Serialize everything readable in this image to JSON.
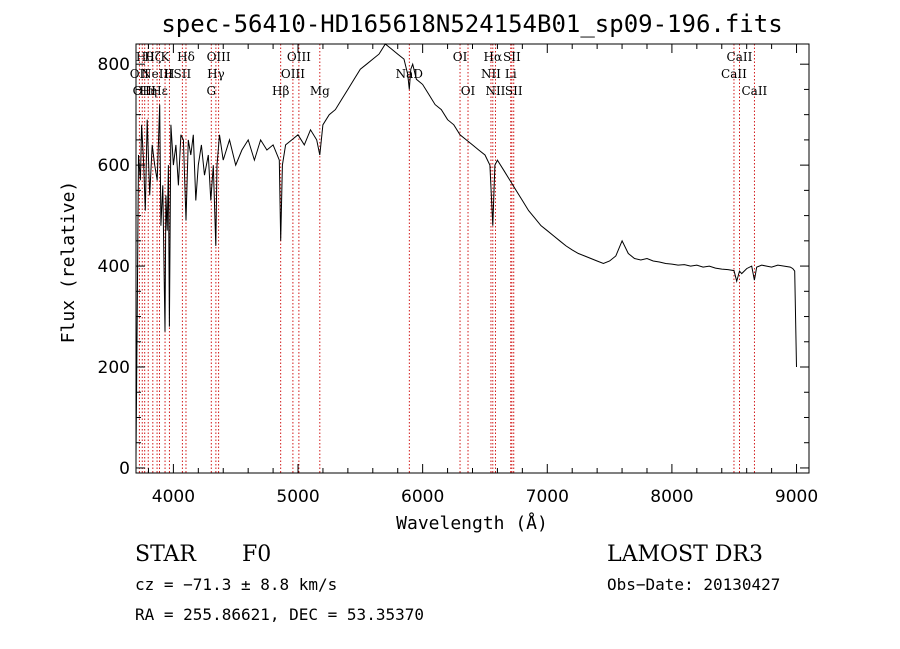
{
  "chart_data": {
    "type": "line",
    "title": "spec-56410-HD165618N524154B01_sp09-196.fits",
    "xlabel": "Wavelength (Å)",
    "ylabel": "Flux (relative)",
    "xlim": [
      3700,
      9100
    ],
    "ylim": [
      -10,
      840
    ],
    "xticks": [
      4000,
      5000,
      6000,
      7000,
      8000,
      9000
    ],
    "yticks": [
      0,
      200,
      400,
      600,
      800
    ],
    "series": [
      {
        "name": "spectrum",
        "x": [
          3700,
          3710,
          3720,
          3735,
          3745,
          3760,
          3775,
          3790,
          3810,
          3830,
          3850,
          3870,
          3890,
          3900,
          3915,
          3925,
          3933,
          3940,
          3950,
          3960,
          3968,
          3980,
          4000,
          4020,
          4040,
          4060,
          4080,
          4101,
          4120,
          4140,
          4160,
          4180,
          4200,
          4225,
          4250,
          4280,
          4300,
          4320,
          4340,
          4350,
          4370,
          4400,
          4450,
          4500,
          4550,
          4600,
          4650,
          4700,
          4750,
          4800,
          4850,
          4861,
          4875,
          4900,
          4950,
          5000,
          5050,
          5100,
          5150,
          5175,
          5200,
          5250,
          5300,
          5350,
          5400,
          5450,
          5500,
          5550,
          5600,
          5650,
          5700,
          5750,
          5800,
          5850,
          5880,
          5893,
          5905,
          5920,
          5950,
          6000,
          6050,
          6100,
          6150,
          6200,
          6250,
          6300,
          6350,
          6400,
          6450,
          6500,
          6540,
          6563,
          6580,
          6600,
          6650,
          6700,
          6750,
          6800,
          6850,
          6900,
          6950,
          7000,
          7050,
          7100,
          7150,
          7200,
          7250,
          7300,
          7350,
          7400,
          7450,
          7500,
          7550,
          7600,
          7650,
          7700,
          7750,
          7800,
          7850,
          7900,
          7950,
          8000,
          8050,
          8100,
          8150,
          8200,
          8250,
          8300,
          8350,
          8400,
          8450,
          8498,
          8520,
          8542,
          8560,
          8600,
          8640,
          8662,
          8680,
          8720,
          8760,
          8800,
          8850,
          8900,
          8950,
          8970,
          8985,
          9000
        ],
        "values": [
          20,
          300,
          620,
          570,
          680,
          610,
          510,
          690,
          540,
          640,
          600,
          570,
          720,
          480,
          560,
          400,
          270,
          540,
          470,
          600,
          280,
          680,
          600,
          640,
          560,
          660,
          650,
          490,
          650,
          620,
          660,
          530,
          600,
          640,
          580,
          620,
          530,
          600,
          440,
          600,
          660,
          610,
          650,
          600,
          630,
          650,
          610,
          650,
          630,
          640,
          610,
          450,
          600,
          640,
          650,
          660,
          640,
          670,
          650,
          620,
          680,
          700,
          710,
          730,
          750,
          770,
          790,
          800,
          810,
          820,
          840,
          830,
          820,
          810,
          780,
          750,
          790,
          800,
          770,
          760,
          740,
          720,
          710,
          690,
          680,
          660,
          650,
          640,
          630,
          620,
          600,
          480,
          600,
          610,
          590,
          570,
          550,
          530,
          510,
          495,
          480,
          470,
          460,
          450,
          440,
          432,
          425,
          420,
          415,
          410,
          405,
          410,
          420,
          450,
          425,
          415,
          412,
          415,
          410,
          408,
          405,
          404,
          402,
          403,
          400,
          402,
          398,
          400,
          396,
          394,
          393,
          391,
          370,
          390,
          385,
          395,
          400,
          372,
          398,
          402,
          400,
          398,
          402,
          400,
          398,
          395,
          390,
          200
        ]
      }
    ],
    "line_markers": [
      {
        "wavelength": 3727,
        "label": "OII",
        "row": 2
      },
      {
        "wavelength": 3750,
        "label": "OII",
        "row": 3
      },
      {
        "wavelength": 3770,
        "label": "Hθ",
        "row": 1
      },
      {
        "wavelength": 3798,
        "label": "Hη",
        "row": 3
      },
      {
        "wavelength": 3835,
        "label": "Hζ",
        "row": 1
      },
      {
        "wavelength": 3869,
        "label": "NeIII",
        "row": 2
      },
      {
        "wavelength": 3889,
        "label": "Hε",
        "row": 3
      },
      {
        "wavelength": 3933,
        "label": "K",
        "row": 1
      },
      {
        "wavelength": 3968,
        "label": "H",
        "row": 2
      },
      {
        "wavelength": 4072,
        "label": "SII",
        "row": 2
      },
      {
        "wavelength": 4101,
        "label": "Hδ",
        "row": 1
      },
      {
        "wavelength": 4304,
        "label": "G",
        "row": 3
      },
      {
        "wavelength": 4341,
        "label": "Hγ",
        "row": 2
      },
      {
        "wavelength": 4363,
        "label": "OIII",
        "row": 1
      },
      {
        "wavelength": 4861,
        "label": "Hβ",
        "row": 3
      },
      {
        "wavelength": 4959,
        "label": "OIII",
        "row": 2
      },
      {
        "wavelength": 5007,
        "label": "OIII",
        "row": 1
      },
      {
        "wavelength": 5175,
        "label": "Mg",
        "row": 3
      },
      {
        "wavelength": 5893,
        "label": "NaD",
        "row": 2
      },
      {
        "wavelength": 6300,
        "label": "OI",
        "row": 1
      },
      {
        "wavelength": 6364,
        "label": "OI",
        "row": 3
      },
      {
        "wavelength": 6548,
        "label": "NII",
        "row": 2
      },
      {
        "wavelength": 6563,
        "label": "Hα",
        "row": 1
      },
      {
        "wavelength": 6584,
        "label": "NII",
        "row": 3
      },
      {
        "wavelength": 6707,
        "label": "Li",
        "row": 2
      },
      {
        "wavelength": 6716,
        "label": "SII",
        "row": 1
      },
      {
        "wavelength": 6731,
        "label": "SII",
        "row": 3
      },
      {
        "wavelength": 8498,
        "label": "CaII",
        "row": 2
      },
      {
        "wavelength": 8542,
        "label": "CaII",
        "row": 1
      },
      {
        "wavelength": 8662,
        "label": "CaII",
        "row": 3
      }
    ]
  },
  "info": {
    "class_label": "STAR",
    "subclass": "F0",
    "survey": "LAMOST DR3",
    "cz": "cz = −71.3 ± 8.8 km/s",
    "obs_date": "Obs−Date: 20130427",
    "coords": "RA = 255.86621, DEC =  53.35370"
  },
  "colors": {
    "spectrum": "#000000",
    "marker_line": "#cc0000",
    "axis": "#000000"
  }
}
